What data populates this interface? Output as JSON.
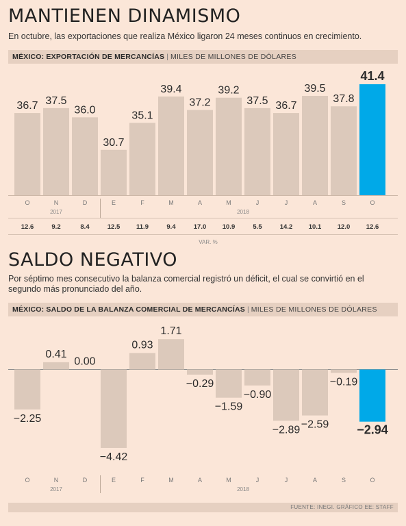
{
  "chart_data": [
    {
      "type": "bar",
      "title": "MANTIENEN DINAMISMO",
      "subtitle": "En octubre, las exportaciones que realiza México ligaron 24 meses continuos en crecimiento.",
      "chart_label": "MÉXICO: EXPORTACIÓN DE MERCANCÍAS",
      "unit": "MILES DE MILLONES DE DÓLARES",
      "categories": [
        "O",
        "N",
        "D",
        "E",
        "F",
        "M",
        "A",
        "M",
        "J",
        "J",
        "A",
        "S",
        "O"
      ],
      "years": [
        {
          "label": "2017",
          "from": 0,
          "to": 2
        },
        {
          "label": "2018",
          "from": 3,
          "to": 12
        }
      ],
      "values": [
        36.7,
        37.5,
        36.0,
        30.7,
        35.1,
        39.4,
        37.2,
        39.2,
        37.5,
        36.7,
        39.5,
        37.8,
        41.4
      ],
      "value_labels": [
        "36.7",
        "37.5",
        "36.0",
        "30.7",
        "35.1",
        "39.4",
        "37.2",
        "39.2",
        "37.5",
        "36.7",
        "39.5",
        "37.8",
        "41.4"
      ],
      "var_row": [
        "12.6",
        "9.2",
        "8.4",
        "12.5",
        "11.9",
        "9.4",
        "17.0",
        "10.9",
        "5.5",
        "14.2",
        "10.1",
        "12.0",
        "12.6"
      ],
      "var_label": "VAR. %",
      "highlight_index": 12,
      "ylim": [
        20,
        42
      ],
      "grid": false
    },
    {
      "type": "bar",
      "title": "SALDO NEGATIVO",
      "subtitle": "Por séptimo mes consecutivo la balanza comercial registró un déficit, el cual se convirtió en el segundo más pronunciado del año.",
      "chart_label": "MÉXICO: SALDO DE LA BALANZA COMERCIAL DE MERCANCÍAS",
      "unit": "MILES DE MILLONES DE DÓLARES",
      "categories": [
        "O",
        "N",
        "D",
        "E",
        "F",
        "M",
        "A",
        "M",
        "J",
        "J",
        "A",
        "S",
        "O"
      ],
      "years": [
        {
          "label": "2017",
          "from": 0,
          "to": 2
        },
        {
          "label": "2018",
          "from": 3,
          "to": 12
        }
      ],
      "values": [
        -2.25,
        0.41,
        0.0,
        -4.42,
        0.93,
        1.71,
        -0.29,
        -1.59,
        -0.9,
        -2.89,
        -2.59,
        -0.19,
        -2.94
      ],
      "value_labels": [
        "-2.25",
        "0.41",
        "0.00",
        "-4.42",
        "0.93",
        "1.71",
        "-0.29",
        "-1.59",
        "-0.90",
        "-2.89",
        "-2.59",
        "-0.19",
        "-2.94"
      ],
      "highlight_index": 12,
      "ylim": [
        -4.42,
        1.71
      ],
      "grid": false
    }
  ],
  "source": "FUENTE: INEGI. GRÁFICO EE: STAFF",
  "colors": {
    "background": "#fbe6d8",
    "band": "#e6d0c1",
    "bar": "#dcc9bb",
    "highlight": "#00a9e8",
    "text": "#2b2b2b"
  }
}
